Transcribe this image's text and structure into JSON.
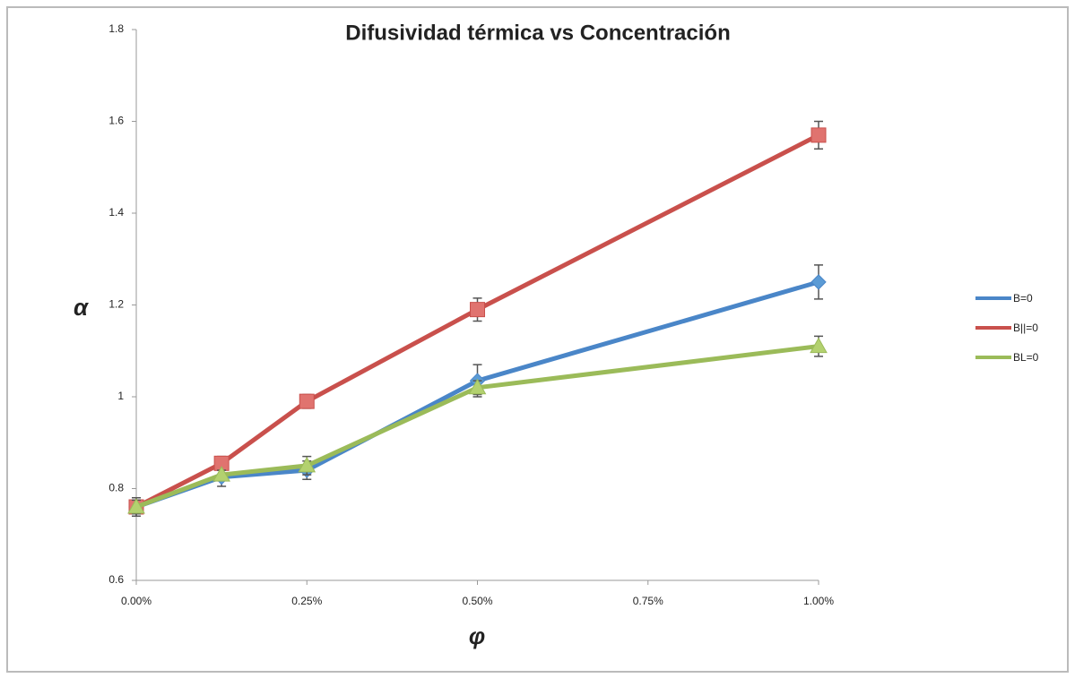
{
  "chart_data": {
    "type": "line",
    "title": "Difusividad térmica vs Concentración",
    "xlabel": "φ",
    "ylabel": "α",
    "x": [
      0,
      0.125,
      0.25,
      0.5,
      1
    ],
    "xlim": [
      0,
      1
    ],
    "xticks": [
      {
        "value": 0,
        "label": "0.00%"
      },
      {
        "value": 0.25,
        "label": "0.25%"
      },
      {
        "value": 0.5,
        "label": "0.50%"
      },
      {
        "value": 0.75,
        "label": "0.75%"
      },
      {
        "value": 1,
        "label": "1.00%"
      }
    ],
    "ylim": [
      0.6,
      1.8
    ],
    "yticks": [
      0.6,
      0.8,
      1,
      1.2,
      1.4,
      1.6,
      1.8
    ],
    "legend": "right",
    "series": [
      {
        "name": "B=0",
        "color": "#4a86c8",
        "marker": "diamond",
        "values": [
          0.76,
          0.825,
          0.84,
          1.035,
          1.25
        ],
        "errors": [
          0.02,
          0.02,
          0.02,
          0.035,
          0.037
        ]
      },
      {
        "name": "B||=0",
        "color": "#c9504c",
        "marker": "square",
        "values": [
          0.76,
          0.855,
          0.99,
          1.19,
          1.57
        ],
        "errors": [
          0.02,
          0.015,
          0.015,
          0.025,
          0.03
        ]
      },
      {
        "name": "BL=0",
        "color": "#9bbb59",
        "marker": "triangle",
        "values": [
          0.76,
          0.83,
          0.85,
          1.02,
          1.11
        ],
        "errors": [
          0.015,
          0.01,
          0.02,
          0.015,
          0.022
        ]
      }
    ]
  }
}
